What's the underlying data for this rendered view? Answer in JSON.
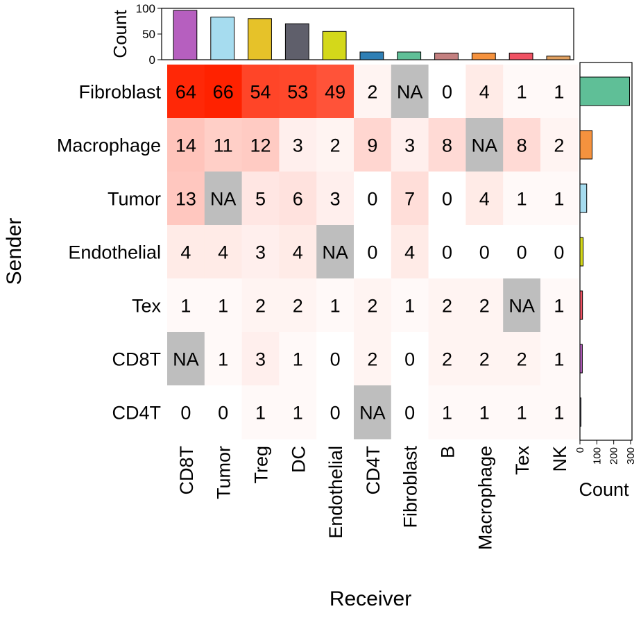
{
  "chart_data": {
    "type": "heatmap",
    "xlabel": "Receiver",
    "ylabel": "Sender",
    "columns": [
      "CD8T",
      "Tumor",
      "Treg",
      "DC",
      "Endothelial",
      "CD4T",
      "Fibroblast",
      "B",
      "Macrophage",
      "Tex",
      "NK"
    ],
    "rows": [
      "Fibroblast",
      "Macrophage",
      "Tumor",
      "Endothelial",
      "Tex",
      "CD8T",
      "CD4T"
    ],
    "values": [
      [
        64,
        66,
        54,
        53,
        49,
        2,
        "NA",
        0,
        4,
        1,
        1
      ],
      [
        14,
        11,
        12,
        3,
        2,
        9,
        3,
        8,
        "NA",
        8,
        2
      ],
      [
        13,
        "NA",
        5,
        6,
        3,
        0,
        7,
        0,
        4,
        1,
        1
      ],
      [
        4,
        4,
        3,
        4,
        "NA",
        0,
        4,
        0,
        0,
        0,
        0
      ],
      [
        1,
        1,
        2,
        2,
        1,
        2,
        1,
        2,
        2,
        "NA",
        1
      ],
      [
        "NA",
        1,
        3,
        1,
        0,
        2,
        0,
        2,
        2,
        2,
        1
      ],
      [
        0,
        0,
        1,
        1,
        0,
        "NA",
        0,
        1,
        1,
        1,
        1
      ]
    ],
    "na_label": "NA",
    "color_low": "#ffffff",
    "color_high": "#ff2200",
    "na_color": "#bebebe",
    "top_bar": {
      "ylabel": "Count",
      "ylim": [
        0,
        100
      ],
      "ticks": [
        "0",
        "50",
        "100"
      ],
      "colors": [
        "#b65fbf",
        "#a6dcef",
        "#e6c229",
        "#5f5f6b",
        "#d4d81a",
        "#2f7fb5",
        "#5fbf97",
        "#c48080",
        "#f5923e",
        "#f05263",
        "#e0a060"
      ]
    },
    "right_bar": {
      "xlabel": "Count",
      "xlim": [
        0,
        300
      ],
      "ticks": [
        "0",
        "100",
        "200",
        "300"
      ],
      "colors": [
        "#5fbf97",
        "#f5923e",
        "#a6dcef",
        "#d4d81a",
        "#f05263",
        "#b65fbf",
        "#5f5f6b"
      ]
    }
  }
}
